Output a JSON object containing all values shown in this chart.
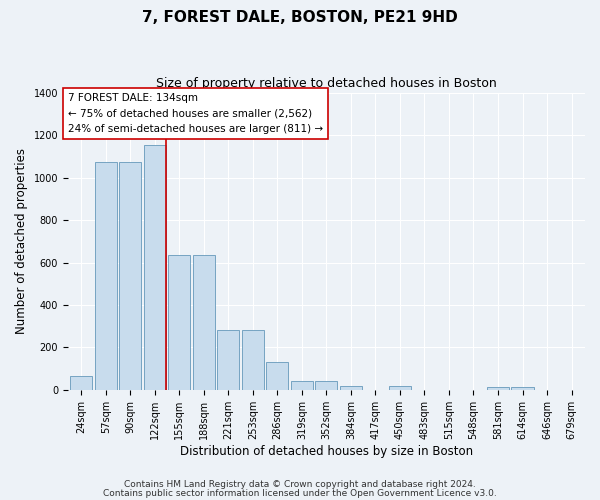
{
  "title": "7, FOREST DALE, BOSTON, PE21 9HD",
  "subtitle": "Size of property relative to detached houses in Boston",
  "xlabel": "Distribution of detached houses by size in Boston",
  "ylabel": "Number of detached properties",
  "categories": [
    "24sqm",
    "57sqm",
    "90sqm",
    "122sqm",
    "155sqm",
    "188sqm",
    "221sqm",
    "253sqm",
    "286sqm",
    "319sqm",
    "352sqm",
    "384sqm",
    "417sqm",
    "450sqm",
    "483sqm",
    "515sqm",
    "548sqm",
    "581sqm",
    "614sqm",
    "646sqm",
    "679sqm"
  ],
  "values": [
    65,
    1075,
    1075,
    1155,
    635,
    635,
    280,
    280,
    130,
    43,
    43,
    20,
    0,
    20,
    0,
    0,
    0,
    12,
    12,
    0,
    0
  ],
  "bar_color": "#c8dced",
  "bar_edge_color": "#6699bb",
  "vline_color": "#cc0000",
  "annotation_line1": "7 FOREST DALE: 134sqm",
  "annotation_line2": "← 75% of detached houses are smaller (2,562)",
  "annotation_line3": "24% of semi-detached houses are larger (811) →",
  "annotation_box_color": "#ffffff",
  "annotation_box_edge": "#cc0000",
  "footer1": "Contains HM Land Registry data © Crown copyright and database right 2024.",
  "footer2": "Contains public sector information licensed under the Open Government Licence v3.0.",
  "ylim": [
    0,
    1400
  ],
  "yticks": [
    0,
    200,
    400,
    600,
    800,
    1000,
    1200,
    1400
  ],
  "title_fontsize": 11,
  "subtitle_fontsize": 9,
  "axis_label_fontsize": 8.5,
  "tick_fontsize": 7,
  "annotation_fontsize": 7.5,
  "footer_fontsize": 6.5,
  "background_color": "#edf2f7"
}
